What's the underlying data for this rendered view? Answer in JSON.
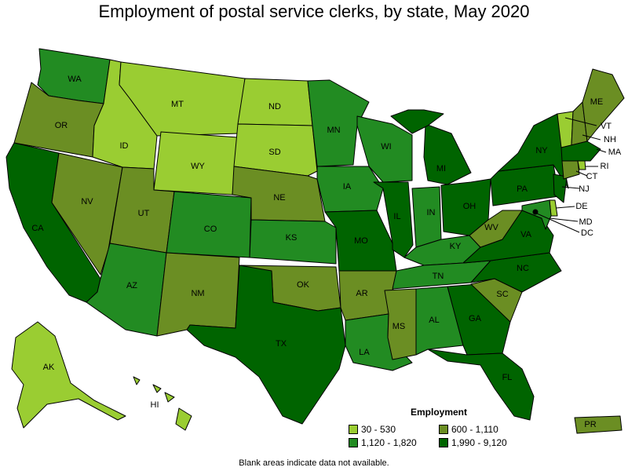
{
  "title": "Employment of postal service clerks, by state, May 2020",
  "footnote": "Blank areas indicate data not available.",
  "legend": {
    "title": "Employment",
    "classes": [
      {
        "range": "30 - 530",
        "color": "#9acd32"
      },
      {
        "range": "600 - 1,110",
        "color": "#6b8e23"
      },
      {
        "range": "1,120 - 1,820",
        "color": "#228b22"
      },
      {
        "range": "1,990 - 9,120",
        "color": "#006400"
      }
    ]
  },
  "states": [
    {
      "abbr": "WA",
      "class": 2
    },
    {
      "abbr": "OR",
      "class": 1
    },
    {
      "abbr": "CA",
      "class": 3
    },
    {
      "abbr": "NV",
      "class": 1
    },
    {
      "abbr": "ID",
      "class": 0
    },
    {
      "abbr": "MT",
      "class": 0
    },
    {
      "abbr": "WY",
      "class": 0
    },
    {
      "abbr": "UT",
      "class": 1
    },
    {
      "abbr": "AZ",
      "class": 2
    },
    {
      "abbr": "CO",
      "class": 2
    },
    {
      "abbr": "NM",
      "class": 1
    },
    {
      "abbr": "ND",
      "class": 0
    },
    {
      "abbr": "SD",
      "class": 0
    },
    {
      "abbr": "NE",
      "class": 1
    },
    {
      "abbr": "KS",
      "class": 2
    },
    {
      "abbr": "OK",
      "class": 1
    },
    {
      "abbr": "TX",
      "class": 3
    },
    {
      "abbr": "MN",
      "class": 2
    },
    {
      "abbr": "IA",
      "class": 2
    },
    {
      "abbr": "MO",
      "class": 3
    },
    {
      "abbr": "AR",
      "class": 1
    },
    {
      "abbr": "LA",
      "class": 2
    },
    {
      "abbr": "WI",
      "class": 2
    },
    {
      "abbr": "IL",
      "class": 3
    },
    {
      "abbr": "MI",
      "class": 3
    },
    {
      "abbr": "IN",
      "class": 2
    },
    {
      "abbr": "OH",
      "class": 3
    },
    {
      "abbr": "KY",
      "class": 2
    },
    {
      "abbr": "TN",
      "class": 2
    },
    {
      "abbr": "MS",
      "class": 1
    },
    {
      "abbr": "AL",
      "class": 2
    },
    {
      "abbr": "GA",
      "class": 3
    },
    {
      "abbr": "FL",
      "class": 3
    },
    {
      "abbr": "SC",
      "class": 1
    },
    {
      "abbr": "NC",
      "class": 3
    },
    {
      "abbr": "VA",
      "class": 3
    },
    {
      "abbr": "WV",
      "class": 1
    },
    {
      "abbr": "PA",
      "class": 3
    },
    {
      "abbr": "NY",
      "class": 3
    },
    {
      "abbr": "ME",
      "class": 1
    },
    {
      "abbr": "VT",
      "class": 0
    },
    {
      "abbr": "NH",
      "class": 1
    },
    {
      "abbr": "MA",
      "class": 3
    },
    {
      "abbr": "RI",
      "class": 0
    },
    {
      "abbr": "CT",
      "class": 1
    },
    {
      "abbr": "NJ",
      "class": 3
    },
    {
      "abbr": "DE",
      "class": 0
    },
    {
      "abbr": "MD",
      "class": 2
    },
    {
      "abbr": "DC",
      "class": 3
    },
    {
      "abbr": "AK",
      "class": 0
    },
    {
      "abbr": "HI",
      "class": 0
    },
    {
      "abbr": "PR",
      "class": 1
    }
  ]
}
